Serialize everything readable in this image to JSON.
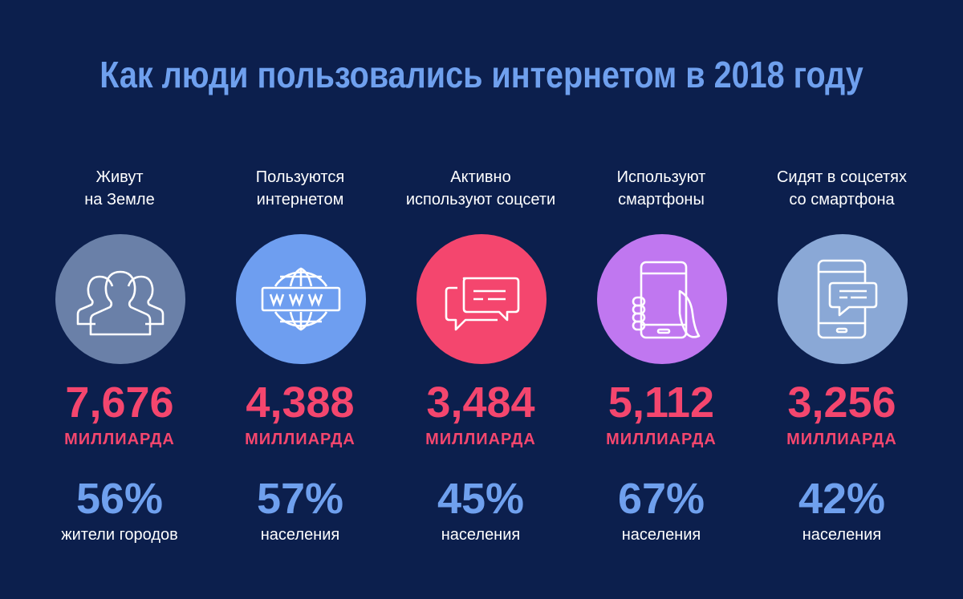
{
  "title": "Как люди пользовались интернетом в 2018 году",
  "colors": {
    "background": "#0c1f4d",
    "accent_red": "#f4466e",
    "accent_blue": "#6fa0ee"
  },
  "columns": [
    {
      "caption_line1": "Живут",
      "caption_line2": "на Земле",
      "icon": "people-icon",
      "circle_color": "#6a80a8",
      "value": "7,676",
      "unit": "МИЛЛИАРДА",
      "percent": "56%",
      "percent_label": "жители городов"
    },
    {
      "caption_line1": "Пользуются",
      "caption_line2": "интернетом",
      "icon": "globe-www-icon",
      "circle_color": "#6e9ef0",
      "value": "4,388",
      "unit": "МИЛЛИАРДА",
      "percent": "57%",
      "percent_label": "населения"
    },
    {
      "caption_line1": "Активно",
      "caption_line2": "используют соцсети",
      "icon": "chat-bubbles-icon",
      "circle_color": "#f4466e",
      "value": "3,484",
      "unit": "МИЛЛИАРДА",
      "percent": "45%",
      "percent_label": "населения"
    },
    {
      "caption_line1": "Используют",
      "caption_line2": "смартфоны",
      "icon": "smartphone-hand-icon",
      "circle_color": "#c077f0",
      "value": "5,112",
      "unit": "МИЛЛИАРДА",
      "percent": "67%",
      "percent_label": "населения"
    },
    {
      "caption_line1": "Сидят в соцсетях",
      "caption_line2": "со смартфона",
      "icon": "phone-chat-icon",
      "circle_color": "#8aa8d6",
      "value": "3,256",
      "unit": "МИЛЛИАРДА",
      "percent": "42%",
      "percent_label": "населения"
    }
  ]
}
